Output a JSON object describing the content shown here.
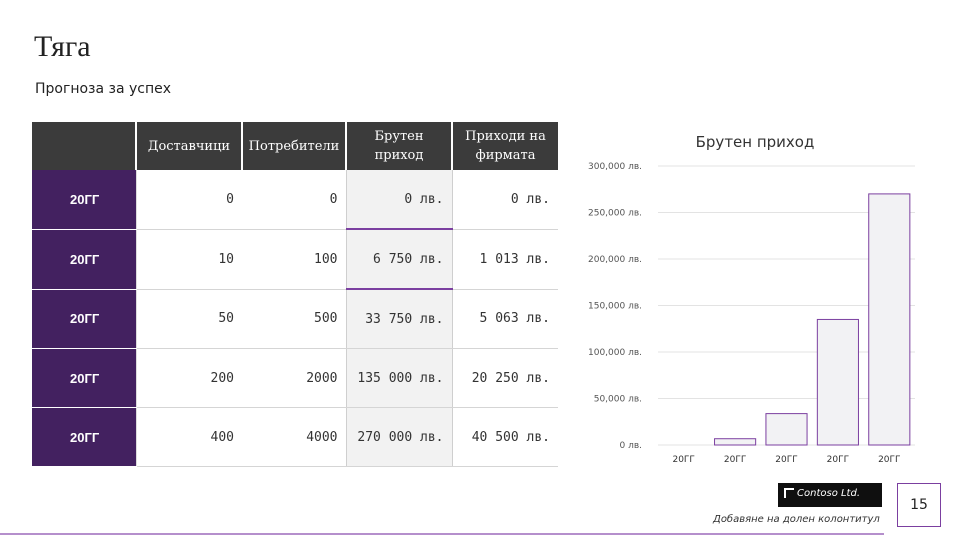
{
  "slide": {
    "title": "Тяга",
    "subtitle": "Прогноза за успех",
    "page_number": "15",
    "footer": "Добавяне на долен колонтитул",
    "logo_text": "Contoso Ltd."
  },
  "table": {
    "headers": [
      "",
      "Доставчици",
      "Потребители",
      "Брутен приход",
      "Приходи на фирмата"
    ],
    "rows": [
      {
        "year": "20ГГ",
        "suppliers": "0",
        "consumers": "0",
        "gross": "0 лв.",
        "company": "0 лв."
      },
      {
        "year": "20ГГ",
        "suppliers": "10",
        "consumers": "100",
        "gross": "6 750 лв.",
        "company": "1 013 лв."
      },
      {
        "year": "20ГГ",
        "suppliers": "50",
        "consumers": "500",
        "gross": "33 750 лв.",
        "company": "5 063 лв."
      },
      {
        "year": "20ГГ",
        "suppliers": "200",
        "consumers": "2000",
        "gross": "135 000 лв.",
        "company": "20 250 лв."
      },
      {
        "year": "20ГГ",
        "suppliers": "400",
        "consumers": "4000",
        "gross": "270 000 лв.",
        "company": "40 500 лв."
      }
    ]
  },
  "chart_data": {
    "type": "bar",
    "title": "Брутен приход",
    "categories": [
      "20ГГ",
      "20ГГ",
      "20ГГ",
      "20ГГ",
      "20ГГ"
    ],
    "values": [
      0,
      6750,
      33750,
      135000,
      270000
    ],
    "ylim": [
      0,
      300000
    ],
    "yticks": [
      0,
      50000,
      100000,
      150000,
      200000,
      250000,
      300000
    ],
    "ytick_labels": [
      "0 лв.",
      "50,000 лв.",
      "100,000 лв.",
      "150,000 лв.",
      "200,000 лв.",
      "250,000 лв.",
      "300,000 лв."
    ],
    "grid": true,
    "bar_fill": "#f2f2f4",
    "bar_stroke": "#7b3fa0"
  },
  "colors": {
    "accent": "#7b3fa0",
    "year_cell": "#432160",
    "header": "#3b3b3b"
  }
}
